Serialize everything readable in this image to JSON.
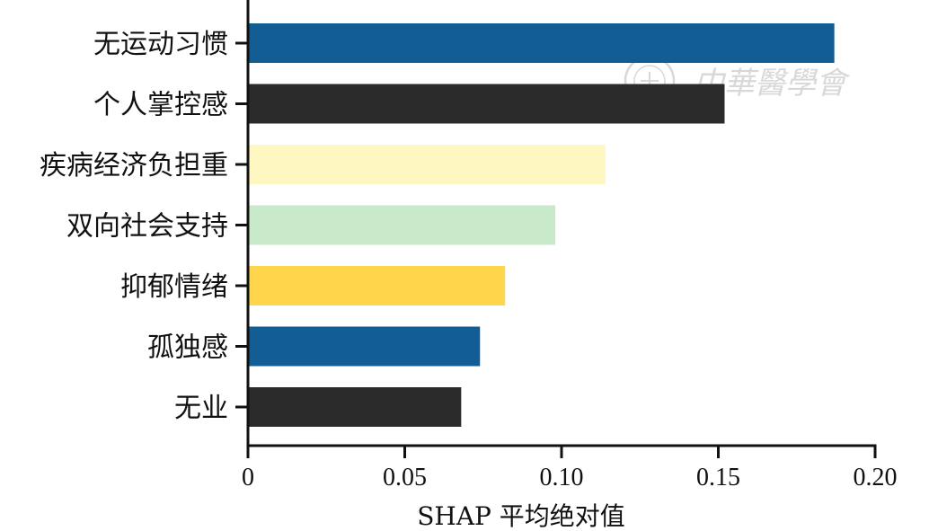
{
  "chart_data": {
    "type": "bar",
    "orientation": "horizontal",
    "categories": [
      "无运动习惯",
      "个人掌控感",
      "疾病经济负担重",
      "双向社会支持",
      "抑郁情绪",
      "孤独感",
      "无业"
    ],
    "values": [
      0.187,
      0.152,
      0.114,
      0.098,
      0.082,
      0.074,
      0.068
    ],
    "colors": [
      "#135d95",
      "#2b2b2b",
      "#fff7c2",
      "#c9e9cb",
      "#ffd54c",
      "#135d95",
      "#2b2b2b"
    ],
    "xlabel": "SHAP 平均绝对值",
    "ylabel": "",
    "xlim": [
      0,
      0.2
    ],
    "xticks": [
      "0",
      "0.05",
      "0.10",
      "0.15",
      "0.20"
    ],
    "xtick_values": [
      0,
      0.05,
      0.1,
      0.15,
      0.2
    ],
    "grid": false,
    "legend": "none"
  },
  "watermark": {
    "text": "中華醫學會",
    "seal": "seal-icon",
    "color": "#d8d8d8"
  }
}
